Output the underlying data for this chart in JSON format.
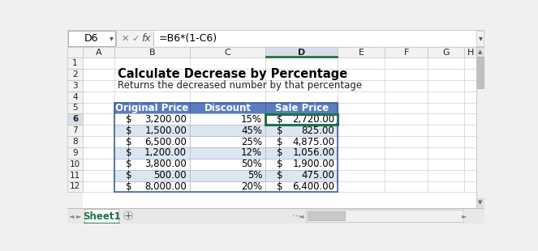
{
  "formula_bar_cell": "D6",
  "formula_bar_formula": "=B6*(1-C6)",
  "title": "Calculate Decrease by Percentage",
  "subtitle": "Returns the decreased number by that percentage",
  "col_headers": [
    "Original Price",
    "Discount",
    "Sale Price"
  ],
  "orig_prices": [
    "3,200.00",
    "1,500.00",
    "6,500.00",
    "1,200.00",
    "3,800.00",
    "500.00",
    "8,000.00"
  ],
  "discounts": [
    "15%",
    "45%",
    "25%",
    "12%",
    "50%",
    "5%",
    "20%"
  ],
  "sale_prices": [
    "2,720.00",
    "825.00",
    "4,875.00",
    "1,056.00",
    "1,900.00",
    "475.00",
    "6,400.00"
  ],
  "header_bg": "#5B7DC0",
  "header_fg": "#FFFFFF",
  "row_bg_alt": "#DCE6F1",
  "row_bg_white": "#FFFFFF",
  "grid_color": "#B8C4D8",
  "selected_cell_border": "#217346",
  "excel_bg": "#F0F0F0",
  "col_header_bg": "#F2F2F2",
  "col_header_selected_bg": "#DADDEA",
  "row_header_bg": "#F2F2F2",
  "row_header_selected_bg": "#DADDEA",
  "tab_label": "Sheet1",
  "col_letters": [
    "A",
    "B",
    "C",
    "D",
    "E",
    "F",
    "G",
    "H"
  ],
  "n_rows": 13
}
